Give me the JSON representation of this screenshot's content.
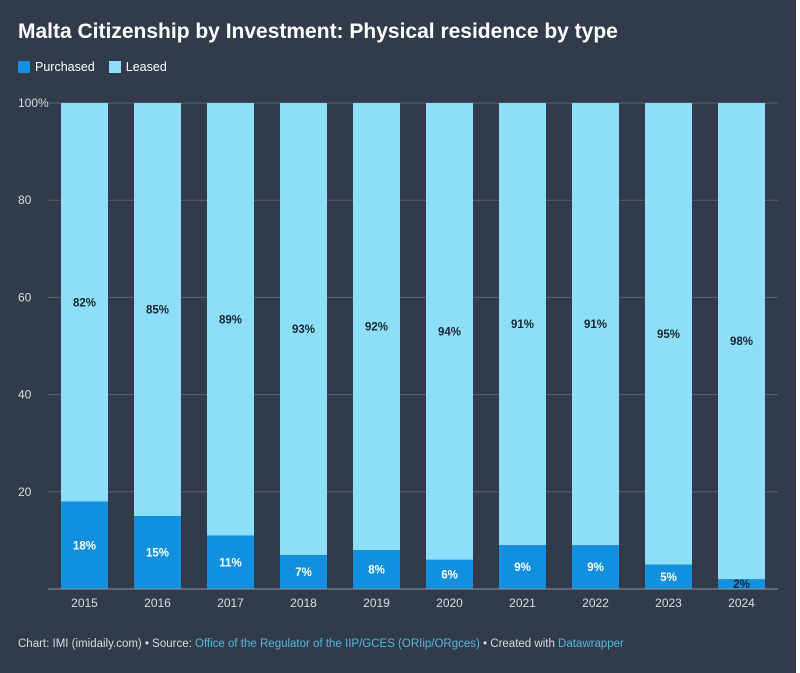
{
  "title": "Malta Citizenship by Investment: Physical residence by type",
  "legend": {
    "purchased": "Purchased",
    "leased": "Leased"
  },
  "colors": {
    "background": "#323b4a",
    "purchased": "#1290e0",
    "leased": "#8ddff9",
    "grid": "#5a6372",
    "tick_text": "#d7dbe2"
  },
  "chart_data": {
    "type": "bar",
    "stacked": true,
    "title": "Malta Citizenship by Investment: Physical residence by type",
    "categories": [
      "2015",
      "2016",
      "2017",
      "2018",
      "2019",
      "2020",
      "2021",
      "2022",
      "2023",
      "2024"
    ],
    "series": [
      {
        "name": "Purchased",
        "values": [
          18,
          15,
          11,
          7,
          8,
          6,
          9,
          9,
          5,
          2
        ]
      },
      {
        "name": "Leased",
        "values": [
          82,
          85,
          89,
          93,
          92,
          94,
          91,
          91,
          95,
          98
        ]
      }
    ],
    "ylim": [
      0,
      100
    ],
    "yticks": [
      {
        "value": 20,
        "label": "20"
      },
      {
        "value": 40,
        "label": "40"
      },
      {
        "value": 60,
        "label": "60"
      },
      {
        "value": 80,
        "label": "80"
      },
      {
        "value": 100,
        "label": "100%"
      }
    ],
    "value_suffix": "%",
    "legend_position": "top-left",
    "xlabel": "",
    "ylabel": ""
  },
  "footer": {
    "chart_credit": "Chart: IMI (imidaily.com) • Source: ",
    "source_link": "Office of the Regulator of the IIP/GCES (ORIip/ORgces)",
    "created_with": " • Created with ",
    "tool_link": "Datawrapper"
  }
}
